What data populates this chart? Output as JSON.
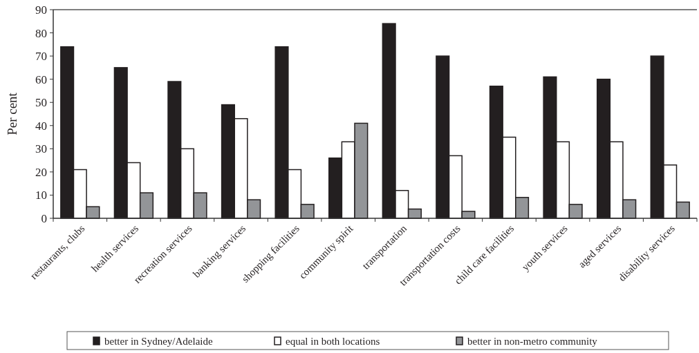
{
  "chart_data": {
    "type": "bar",
    "ylabel": "Per cent",
    "categories": [
      "restaurants, clubs",
      "health services",
      "recreation services",
      "banking services",
      "shopping facilities",
      "community spirit",
      "transportation",
      "transportation costs",
      "child care facilities",
      "youth services",
      "aged services",
      "disability services"
    ],
    "series": [
      {
        "name": "better in Sydney/Adelaide",
        "color": "#231f20",
        "values": [
          74,
          65,
          59,
          49,
          74,
          26,
          84,
          70,
          57,
          61,
          60,
          70
        ]
      },
      {
        "name": "equal in both locations",
        "color": "#ffffff",
        "values": [
          21,
          24,
          30,
          43,
          21,
          33,
          12,
          27,
          35,
          33,
          33,
          23
        ]
      },
      {
        "name": "better in non-metro community",
        "color": "#939598",
        "values": [
          5,
          11,
          11,
          8,
          6,
          41,
          4,
          3,
          9,
          6,
          8,
          7
        ]
      }
    ],
    "ylim": [
      0,
      90
    ],
    "yticks": [
      0,
      10,
      20,
      30,
      40,
      50,
      60,
      70,
      80,
      90
    ],
    "grid": false,
    "legend": "bottom"
  }
}
